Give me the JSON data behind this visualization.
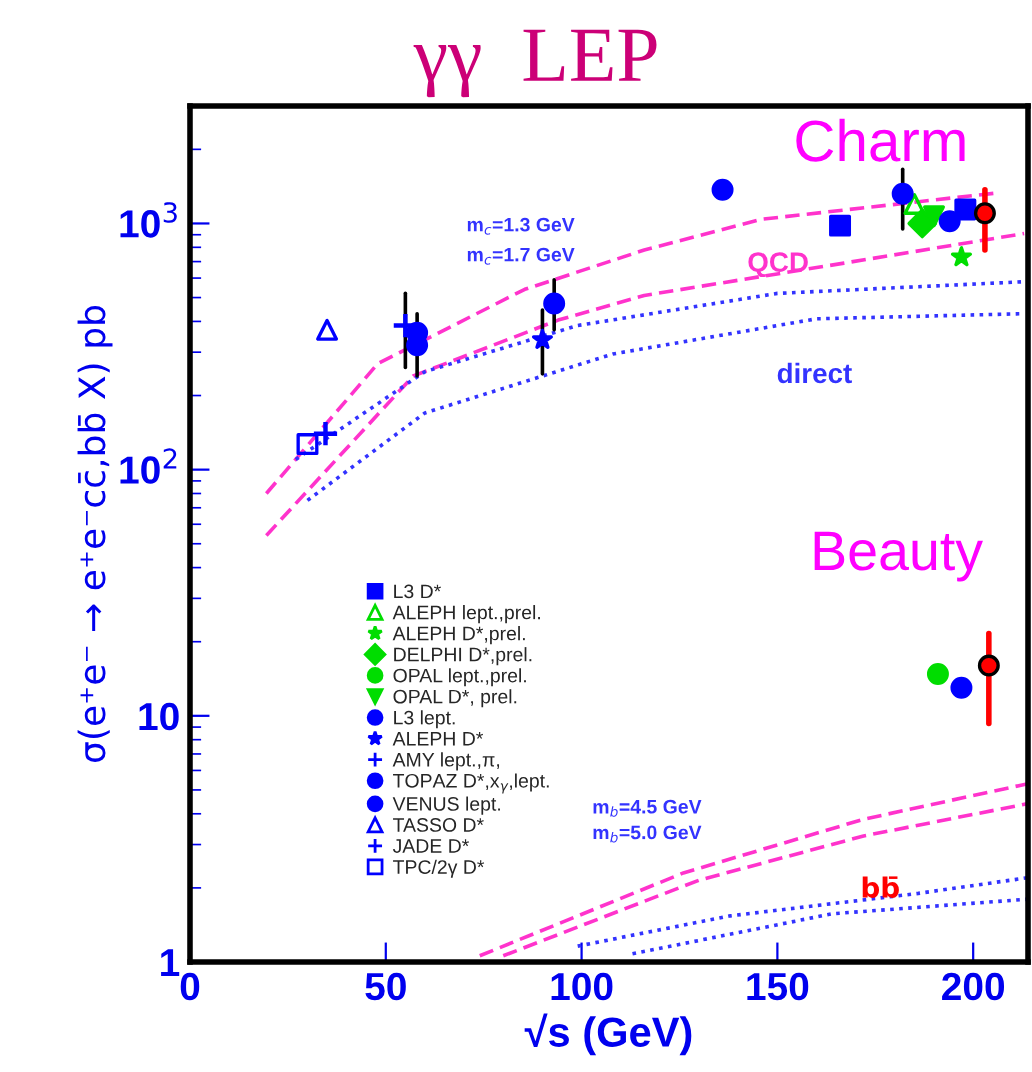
{
  "chart_data": {
    "type": "scatter",
    "title": "γγ  LEP",
    "xlabel": "√s (GeV)",
    "ylabel": "σ(e⁺e⁻ → e⁺e⁻cc̄,bb̄ X) pb",
    "log": "y",
    "xlim": [
      0,
      214
    ],
    "ylim": [
      1,
      3000
    ],
    "xticks": [
      0,
      50,
      100,
      150,
      200
    ],
    "yticks": [
      {
        "value": 1,
        "label": "1"
      },
      {
        "value": 10,
        "label": "10"
      },
      {
        "value": 100,
        "label": "10$^{2}$"
      },
      {
        "value": 1000,
        "label": "10$^{3}$"
      }
    ],
    "legend": "left",
    "grid": false,
    "series": [
      {
        "name": "L3 D*",
        "color": "#0000ff",
        "marker": "square",
        "x": [
          166,
          198
        ],
        "values": [
          980,
          1140
        ]
      },
      {
        "name": "ALEPH lept.,prel.",
        "color": "#00dd00",
        "marker": "triangle",
        "x": [
          185
        ],
        "values": [
          1200
        ]
      },
      {
        "name": "ALEPH D*,prel.",
        "color": "#00dd00",
        "marker": "star",
        "x": [
          197
        ],
        "values": [
          730
        ]
      },
      {
        "name": "DELPHI D*,prel.",
        "color": "#00dd00",
        "marker": "diamond",
        "x": [
          187
        ],
        "values": [
          1000
        ]
      },
      {
        "name": "OPAL lept.,prel.",
        "color": "#00dd00",
        "marker": "circle",
        "x": [
          191
        ],
        "values": [
          14.8
        ]
      },
      {
        "name": "OPAL D*, prel.",
        "color": "#00dd00",
        "marker": "triangle_down",
        "x": [
          190
        ],
        "values": [
          1070
        ]
      },
      {
        "name": "L3 lept.",
        "color": "#0000ff",
        "marker": "circle",
        "x": [
          93,
          136,
          182,
          194,
          197
        ],
        "values": [
          473,
          1370,
          1320,
          1020,
          13
        ],
        "errors": [
          [
            370,
            590
          ],
          null,
          [
            950,
            1660
          ],
          null,
          null
        ]
      },
      {
        "name": "ALEPH D*",
        "color": "#0000ff",
        "marker": "star",
        "x": [
          90
        ],
        "values": [
          337
        ],
        "errors": [
          [
            245,
            445
          ]
        ]
      },
      {
        "name": "AMY lept.,π,",
        "color": "#0000ff",
        "marker": "plus",
        "x": [
          55
        ],
        "values": [
          385
        ],
        "errors": [
          [
            260,
            520
          ]
        ]
      },
      {
        "name": "TOPAZ D*,x$_{γ}$,lept.",
        "color": "#0000ff",
        "marker": "circle",
        "x": [
          58
        ],
        "values": [
          320
        ],
        "errors": [
          [
            240,
            430
          ]
        ]
      },
      {
        "name": "VENUS lept.",
        "color": "#0000ff",
        "marker": "circle",
        "x": [
          58
        ],
        "values": [
          360
        ]
      },
      {
        "name": "TASSO D*",
        "color": "#0000ff",
        "marker": "triangle",
        "x": [
          35
        ],
        "values": [
          370
        ]
      },
      {
        "name": "JADE D*",
        "color": "#0000ff",
        "marker": "plus",
        "x": [
          34.6
        ],
        "values": [
          140
        ]
      },
      {
        "name": "TPC/2γ D*",
        "color": "#0000ff",
        "marker": "square_open",
        "x": [
          30
        ],
        "values": [
          127
        ]
      },
      {
        "color": "#ff0000",
        "marker": "circle",
        "x": [
          203,
          204
        ],
        "values": [
          1100,
          16
        ],
        "errors": [
          [
            780,
            1370
          ],
          [
            9.3,
            21.6
          ]
        ]
      },
      {
        "type": "line",
        "color": "#ff33cc",
        "line_style": "dashed",
        "x": [
          19.5,
          48,
          85.5,
          116,
          146,
          206
        ],
        "values": [
          80,
          270,
          540,
          780,
          1040,
          1330
        ]
      },
      {
        "type": "line",
        "color": "#ff33cc",
        "line_style": "dashed",
        "x": [
          19.5,
          57,
          94,
          116,
          167,
          213
        ],
        "values": [
          54,
          240,
          405,
          510,
          690,
          910
        ]
      },
      {
        "type": "line",
        "color": "#3333ff",
        "line_style": "dotted",
        "x": [
          27,
          60,
          99,
          150,
          213
        ],
        "values": [
          110,
          250,
          385,
          520,
          580
        ]
      },
      {
        "type": "line",
        "color": "#3333ff",
        "line_style": "dotted",
        "x": [
          30,
          60,
          108,
          160,
          213
        ],
        "values": [
          75,
          170,
          295,
          410,
          430
        ]
      },
      {
        "type": "line",
        "color": "#ff33cc",
        "line_style": "dashed",
        "x": [
          74,
          126,
          172,
          214
        ],
        "values": [
          1.06,
          2.3,
          3.8,
          5.3
        ]
      },
      {
        "type": "line",
        "color": "#ff33cc",
        "line_style": "dashed",
        "x": [
          80,
          130,
          172,
          214
        ],
        "values": [
          1.06,
          2.15,
          3.25,
          4.4
        ]
      },
      {
        "type": "line",
        "color": "#3333ff",
        "line_style": "dotted",
        "x": [
          99,
          138,
          186,
          214
        ],
        "values": [
          1.16,
          1.54,
          1.9,
          2.2
        ]
      },
      {
        "type": "line",
        "color": "#3333ff",
        "line_style": "dotted",
        "x": [
          113,
          164,
          214
        ],
        "values": [
          1.08,
          1.57,
          1.8
        ]
      }
    ],
    "annotations": [
      "Charm",
      "QCD",
      "direct",
      "m$_{c}$=1.3 GeV",
      "m$_{c}$=1.7 GeV",
      "Beauty",
      "bb̄",
      "m$_{b}$=4.5 GeV",
      "m$_{b}$=5.0 GeV"
    ]
  }
}
